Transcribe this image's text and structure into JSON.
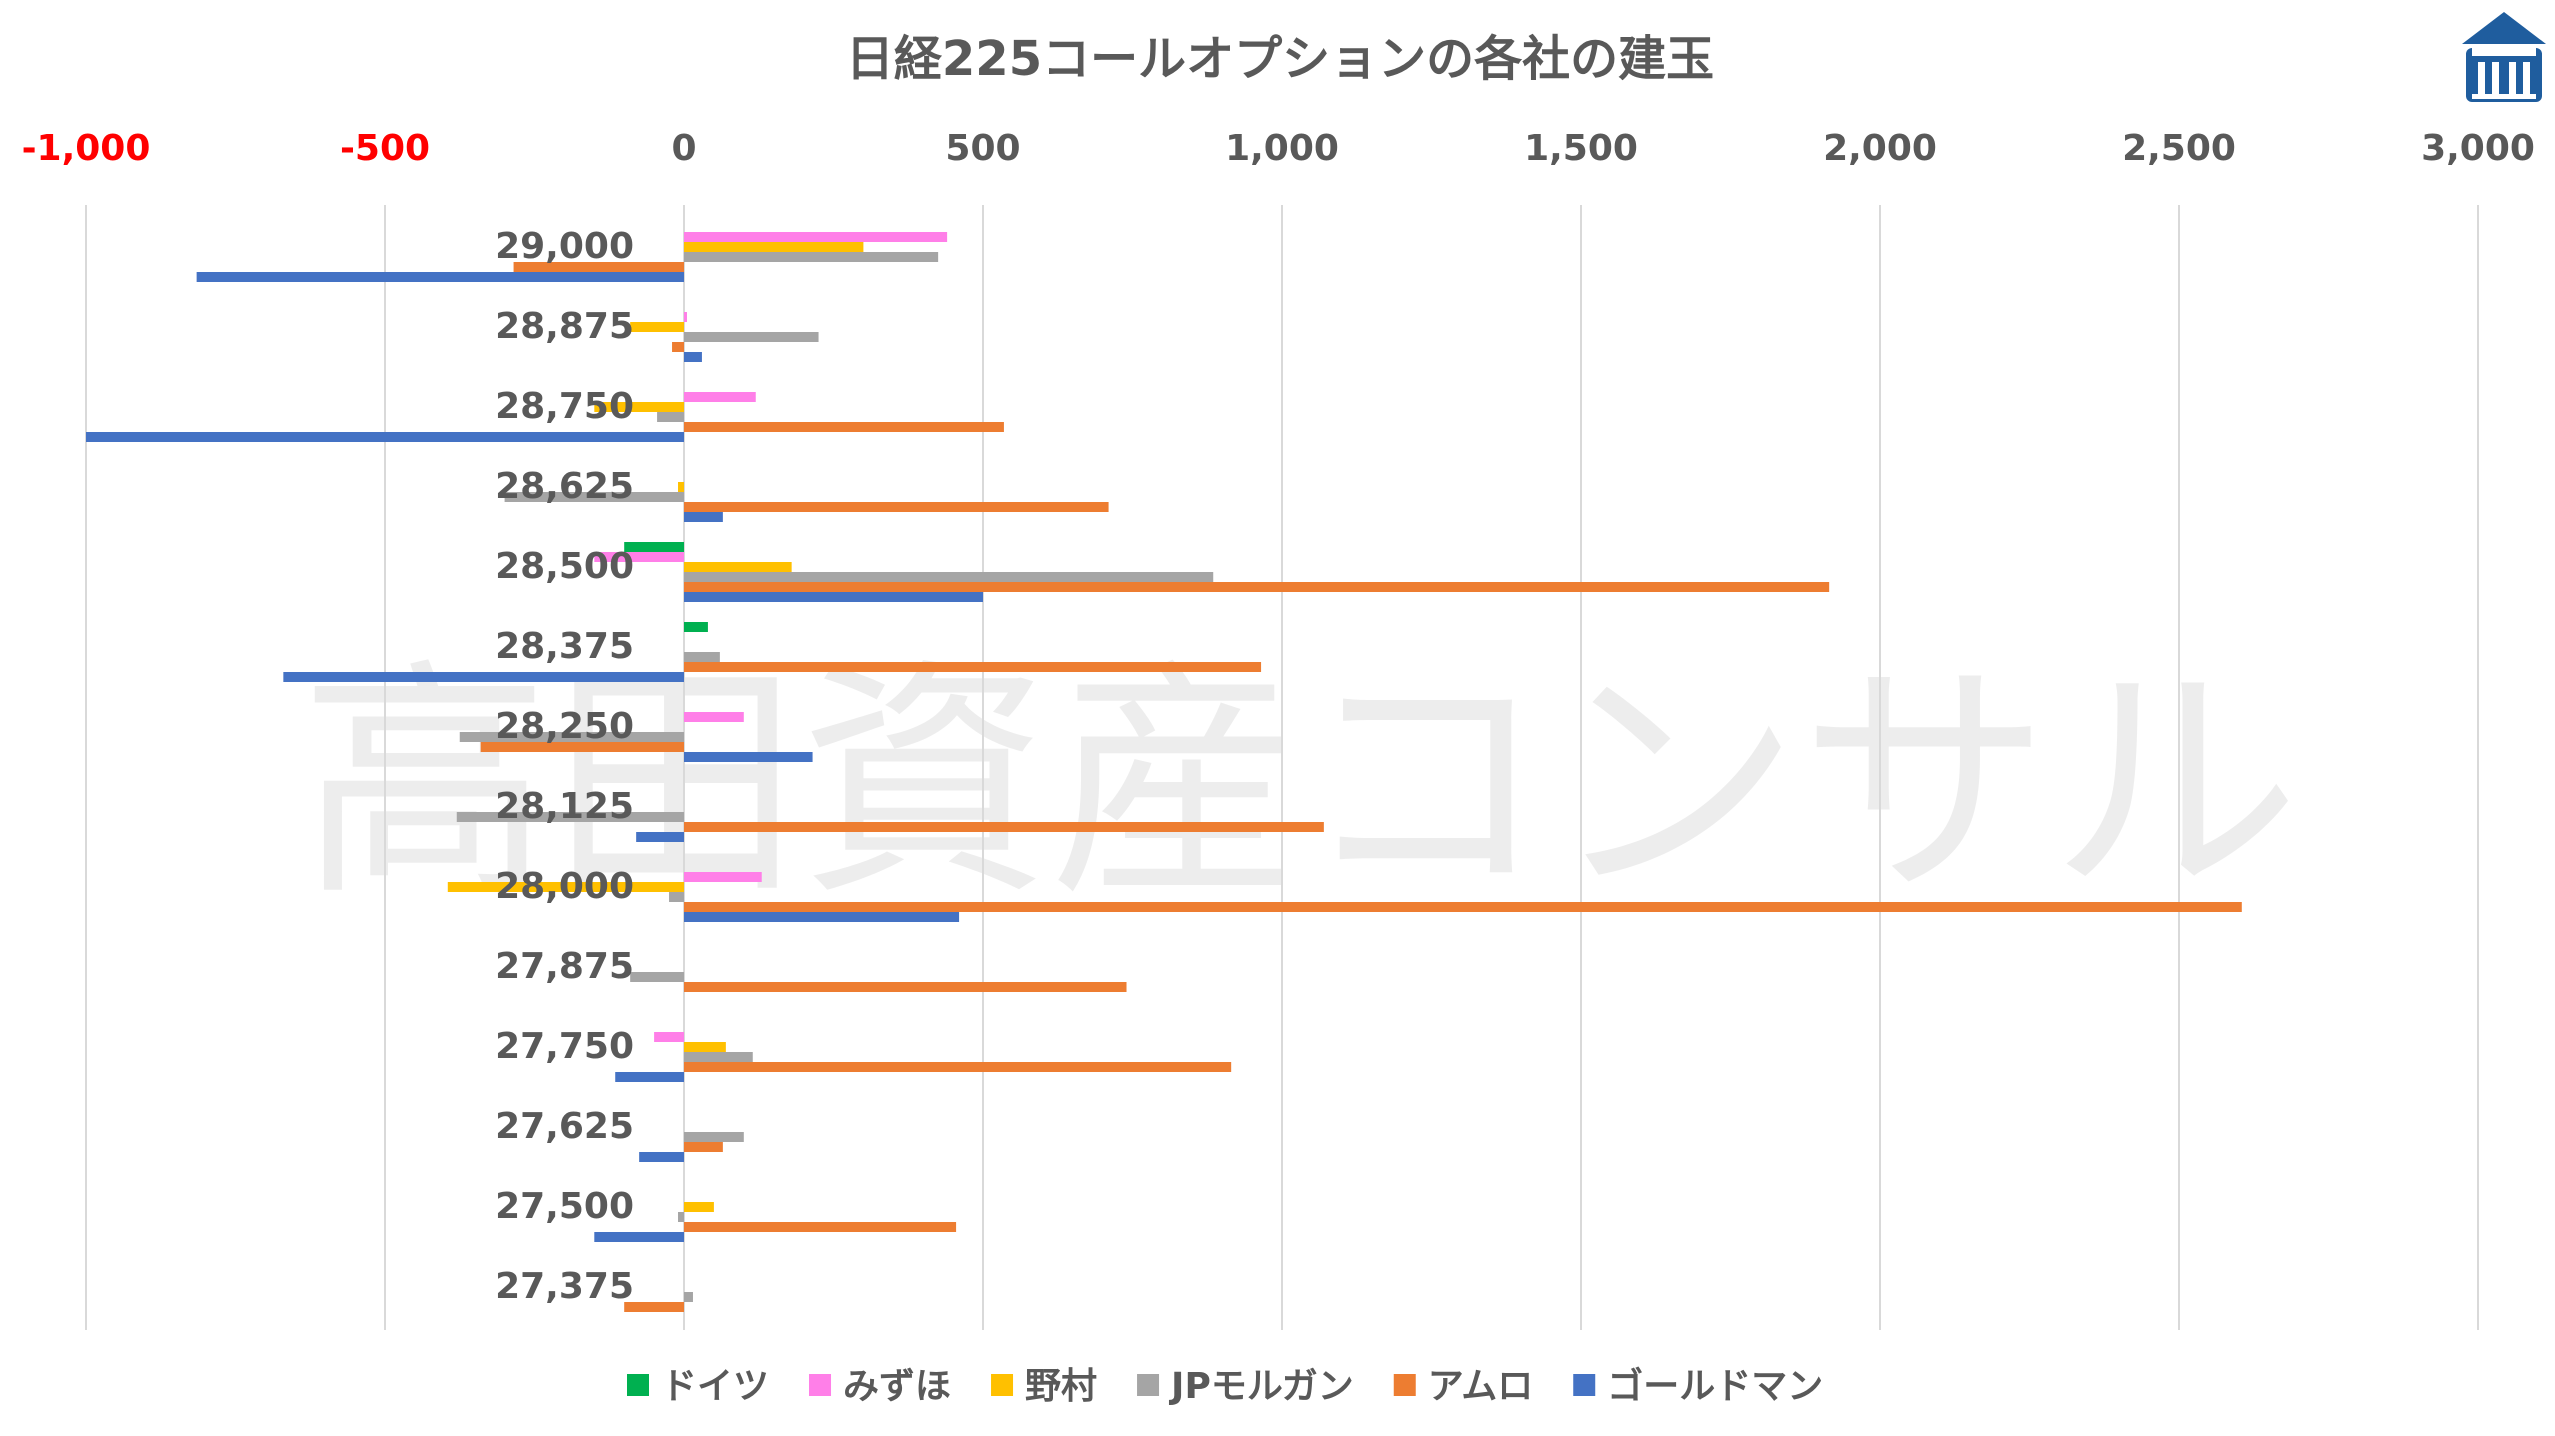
{
  "colors": {
    "ドイツ": "#00b050",
    "みずほ": "#ff7fe8",
    "野村": "#ffc000",
    "JPモルガン": "#a5a5a5",
    "アムロ": "#ed7d31",
    "ゴールドマン": "#4472c4",
    "negative_tick": "#ff0000",
    "tick": "#595959",
    "grid": "#d9d9d9",
    "logo": "#1f5d9e"
  },
  "watermark": "高田資産コンサル",
  "logo_icon": "building-logo-icon",
  "chart_data": {
    "type": "bar",
    "orientation": "horizontal",
    "title": "日経225コールオプションの各社の建玉",
    "xlim": [
      -1000,
      3000
    ],
    "xticks": [
      -1000,
      -500,
      0,
      500,
      1000,
      1500,
      2000,
      2500,
      3000
    ],
    "xtick_labels": [
      "-1,000",
      "-500",
      "0",
      "500",
      "1,000",
      "1,500",
      "2,000",
      "2,500",
      "3,000"
    ],
    "grid": "vertical",
    "legend_position": "bottom",
    "categories": [
      "29,000",
      "28,875",
      "28,750",
      "28,625",
      "28,500",
      "28,375",
      "28,250",
      "28,125",
      "28,000",
      "27,875",
      "27,750",
      "27,625",
      "27,500",
      "27,375"
    ],
    "series": [
      {
        "name": "ドイツ",
        "values": [
          0,
          0,
          0,
          0,
          -100,
          40,
          0,
          0,
          0,
          0,
          0,
          0,
          0,
          0
        ]
      },
      {
        "name": "みずほ",
        "values": [
          440,
          5,
          120,
          0,
          -150,
          0,
          100,
          0,
          130,
          0,
          -50,
          0,
          0,
          0
        ]
      },
      {
        "name": "野村",
        "values": [
          300,
          -90,
          -150,
          -10,
          180,
          0,
          0,
          0,
          -395,
          0,
          70,
          0,
          50,
          0
        ]
      },
      {
        "name": "JPモルガン",
        "values": [
          425,
          225,
          -45,
          -300,
          885,
          60,
          -375,
          -380,
          -25,
          -90,
          115,
          100,
          -10,
          15
        ]
      },
      {
        "name": "アムロ",
        "values": [
          -285,
          -20,
          535,
          710,
          1915,
          965,
          -340,
          1070,
          2605,
          740,
          915,
          65,
          455,
          -100
        ]
      },
      {
        "name": "ゴールドマン",
        "values": [
          -815,
          30,
          -1000,
          65,
          500,
          -670,
          215,
          -80,
          460,
          0,
          -115,
          -75,
          -150,
          0
        ]
      }
    ]
  }
}
